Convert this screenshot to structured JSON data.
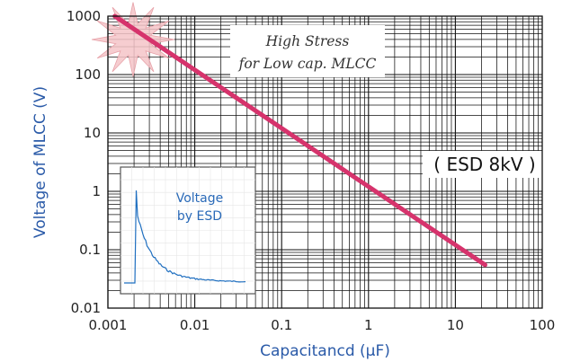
{
  "chart_data": {
    "type": "line",
    "x_scale": "log",
    "y_scale": "log",
    "xlim": [
      0.001,
      100
    ],
    "ylim": [
      0.01,
      1000
    ],
    "xlabel": "Capacitancd (µF)",
    "ylabel": "Voltage of MLCC (V)",
    "x_ticks": [
      "0.001",
      "0.01",
      "0.1",
      "1",
      "10",
      "100"
    ],
    "y_ticks": [
      "1000",
      "100",
      "10",
      "1",
      "0.1",
      "0.01"
    ],
    "grid": "on (log major + minor)",
    "series": [
      {
        "color": "#d6336c",
        "x": [
          0.0012,
          22
        ],
        "y": [
          1000,
          0.055
        ]
      }
    ],
    "annotations": {
      "high_stress_line1": "High Stress",
      "high_stress_line2": "for Low cap. MLCC",
      "esd": "( ESD 8kV )"
    },
    "inset": {
      "label_line1": "Voltage",
      "label_line2": "by ESD",
      "waveform_color": "#1f6fc0"
    },
    "colors": {
      "line": "#d6336c",
      "starburst": "#f4c4c8",
      "axis_label": "#2a5aa8",
      "grid": "#111111"
    }
  }
}
